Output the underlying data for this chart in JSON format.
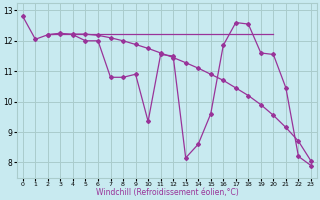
{
  "line1_x": [
    0,
    1,
    2,
    3,
    4,
    5,
    6,
    7,
    8,
    9,
    10,
    11,
    12,
    13,
    14,
    15,
    16,
    17,
    18,
    19,
    20,
    21,
    22,
    23
  ],
  "line1_y": [
    12.8,
    12.05,
    12.2,
    12.25,
    12.2,
    12.0,
    12.0,
    10.8,
    10.8,
    10.9,
    9.35,
    11.55,
    11.5,
    8.15,
    8.6,
    9.6,
    11.85,
    12.6,
    12.55,
    11.6,
    11.55,
    10.45,
    8.2,
    7.9
  ],
  "line2_x": [
    2,
    3,
    4,
    5,
    6,
    7,
    8,
    9,
    10,
    11,
    12,
    13,
    14,
    15,
    16,
    17,
    18,
    19,
    20,
    21,
    22,
    23
  ],
  "line2_y": [
    12.2,
    12.22,
    12.22,
    12.22,
    12.18,
    12.1,
    12.0,
    11.88,
    11.75,
    11.6,
    11.45,
    11.28,
    11.1,
    10.9,
    10.7,
    10.45,
    10.2,
    9.9,
    9.55,
    9.15,
    8.7,
    8.05
  ],
  "line3_x": [
    2,
    20
  ],
  "line3_y": [
    12.22,
    12.22
  ],
  "color": "#993399",
  "bg_color": "#c8eaf0",
  "grid_color": "#aacccc",
  "xlabel": "Windchill (Refroidissement éolien,°C)",
  "xlim": [
    -0.5,
    23.5
  ],
  "ylim": [
    7.5,
    13.25
  ],
  "yticks": [
    8,
    9,
    10,
    11,
    12,
    13
  ],
  "xticks": [
    0,
    1,
    2,
    3,
    4,
    5,
    6,
    7,
    8,
    9,
    10,
    11,
    12,
    13,
    14,
    15,
    16,
    17,
    18,
    19,
    20,
    21,
    22,
    23
  ],
  "marker": "D",
  "markersize": 2.0,
  "linewidth": 0.9
}
